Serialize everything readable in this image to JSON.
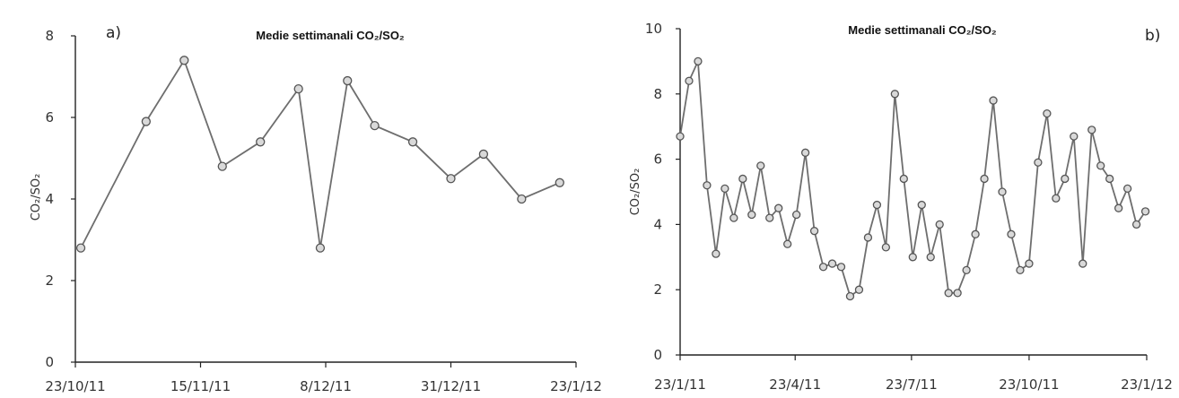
{
  "chart_data": [
    {
      "type": "line",
      "panel_label": "a)",
      "title": "Medie settimanali CO₂/SO₂",
      "ylabel": "CO₂/SO₂",
      "ylim": [
        0,
        8
      ],
      "yticks": [
        "0",
        "2",
        "4",
        "6",
        "8"
      ],
      "xtick_labels": [
        "23/10/11",
        "15/11/11",
        "8/12/11",
        "31/12/11",
        "23/1/12"
      ],
      "x_range": [
        "2011-10-23",
        "2012-01-23"
      ],
      "xticks": [
        "2011-10-23",
        "2011-11-15",
        "2011-12-08",
        "2011-12-31",
        "2012-01-23"
      ],
      "x": [
        "2011-10-24",
        "2011-11-05",
        "2011-11-12",
        "2011-11-19",
        "2011-11-26",
        "2011-12-03",
        "2011-12-07",
        "2011-12-12",
        "2011-12-17",
        "2011-12-24",
        "2011-12-31",
        "2012-01-06",
        "2012-01-13",
        "2012-01-20"
      ],
      "y": [
        2.8,
        5.9,
        7.4,
        4.8,
        5.4,
        6.7,
        2.8,
        6.9,
        5.8,
        5.4,
        4.5,
        5.1,
        4.0,
        4.4
      ],
      "series_color": "#6e6e6e",
      "marker": "circle"
    },
    {
      "type": "line",
      "panel_label": "b)",
      "title": "Medie settimanali CO₂/SO₂",
      "ylabel": "CO₂/SO₂",
      "ylim": [
        0,
        10
      ],
      "yticks": [
        "0",
        "2",
        "4",
        "6",
        "8",
        "10"
      ],
      "xtick_labels": [
        "23/1/11",
        "23/4/11",
        "23/7/11",
        "23/10/11",
        "23/1/12"
      ],
      "x_range": [
        "2011-01-23",
        "2012-01-23"
      ],
      "xticks": [
        "2011-01-23",
        "2011-04-23",
        "2011-07-23",
        "2011-10-23",
        "2012-01-23"
      ],
      "x": [
        "2011-01-23",
        "2011-01-30",
        "2011-02-06",
        "2011-02-13",
        "2011-02-20",
        "2011-02-27",
        "2011-03-06",
        "2011-03-13",
        "2011-03-20",
        "2011-03-27",
        "2011-04-03",
        "2011-04-10",
        "2011-04-17",
        "2011-04-24",
        "2011-05-01",
        "2011-05-08",
        "2011-05-15",
        "2011-05-22",
        "2011-05-29",
        "2011-06-05",
        "2011-06-12",
        "2011-06-19",
        "2011-06-26",
        "2011-07-03",
        "2011-07-10",
        "2011-07-17",
        "2011-07-24",
        "2011-07-31",
        "2011-08-07",
        "2011-08-14",
        "2011-08-21",
        "2011-08-28",
        "2011-09-04",
        "2011-09-11",
        "2011-09-18",
        "2011-09-25",
        "2011-10-02",
        "2011-10-09",
        "2011-10-16",
        "2011-10-23",
        "2011-10-30",
        "2011-11-06",
        "2011-11-13",
        "2011-11-20",
        "2011-11-27",
        "2011-12-04",
        "2011-12-11",
        "2011-12-18",
        "2011-12-25",
        "2012-01-01",
        "2012-01-08",
        "2012-01-15",
        "2012-01-22"
      ],
      "y": [
        6.7,
        8.4,
        9.0,
        5.2,
        3.1,
        5.1,
        4.2,
        5.4,
        4.3,
        5.8,
        4.2,
        4.5,
        3.4,
        4.3,
        6.2,
        3.8,
        2.7,
        2.8,
        2.7,
        1.8,
        2.0,
        3.6,
        4.6,
        3.3,
        8.0,
        5.4,
        3.0,
        4.6,
        3.0,
        4.0,
        1.9,
        1.9,
        2.6,
        3.7,
        5.4,
        7.8,
        5.0,
        3.7,
        2.6,
        2.8,
        5.9,
        7.4,
        4.8,
        5.4,
        6.7,
        2.8,
        6.9,
        5.8,
        5.4,
        4.5,
        5.1,
        4.0,
        4.4
      ],
      "series_color": "#6e6e6e",
      "marker": "circle"
    }
  ]
}
